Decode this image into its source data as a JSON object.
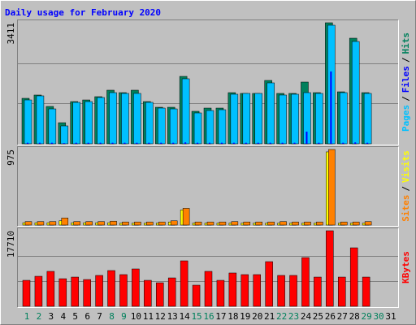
{
  "chart_data": [
    {
      "type": "bar",
      "title": "Daily usage for February 2020",
      "legend_separator": "/",
      "ylim": [
        0,
        3411
      ],
      "yticks": [
        3411
      ],
      "gridlines": [
        1137,
        2274
      ],
      "series": [
        {
          "name": "Pages",
          "color": "#00c0ff",
          "values": [
            1236,
            1351,
            984,
            504,
            1168,
            1190,
            1305,
            1442,
            1420,
            1420,
            1168,
            1007,
            984,
            1832,
            870,
            938,
            961,
            1397,
            1420,
            1420,
            1717,
            1374,
            1397,
            1442,
            1420,
            3342,
            1442,
            2884,
            1420,
            0,
            0
          ]
        },
        {
          "name": "Files",
          "color": "#0000ff",
          "values": [
            30,
            30,
            30,
            20,
            30,
            30,
            30,
            30,
            30,
            30,
            30,
            30,
            30,
            40,
            30,
            30,
            30,
            30,
            30,
            30,
            30,
            30,
            30,
            343,
            30,
            2038,
            30,
            40,
            30,
            0,
            0
          ]
        },
        {
          "name": "Hits",
          "color": "#00805c",
          "values": [
            1282,
            1374,
            1053,
            595,
            1190,
            1236,
            1328,
            1511,
            1442,
            1511,
            1190,
            1030,
            1030,
            1900,
            916,
            1007,
            1007,
            1442,
            1420,
            1420,
            1786,
            1420,
            1420,
            1740,
            1442,
            3411,
            1465,
            2976,
            1442,
            0,
            0
          ]
        }
      ]
    },
    {
      "type": "bar",
      "legend_separator": "/",
      "ylim": [
        0,
        975
      ],
      "yticks": [
        975
      ],
      "series": [
        {
          "name": "Sites",
          "color": "#ff8000",
          "values": [
            45,
            45,
            45,
            92,
            45,
            45,
            45,
            50,
            40,
            40,
            40,
            40,
            55,
            216,
            40,
            40,
            40,
            45,
            40,
            40,
            40,
            45,
            40,
            40,
            40,
            975,
            40,
            40,
            45,
            0,
            0
          ]
        },
        {
          "name": "Visits",
          "color": "#ffff00",
          "values": [
            30,
            30,
            30,
            55,
            30,
            30,
            30,
            30,
            25,
            25,
            25,
            25,
            40,
            195,
            25,
            25,
            25,
            25,
            25,
            25,
            25,
            25,
            25,
            25,
            25,
            944,
            25,
            25,
            25,
            0,
            0
          ]
        }
      ]
    },
    {
      "type": "bar",
      "ylim": [
        0,
        17710
      ],
      "yticks": [
        17710
      ],
      "gridlines": [
        5903,
        11807
      ],
      "categories": [
        "1",
        "2",
        "3",
        "4",
        "5",
        "6",
        "7",
        "8",
        "9",
        "10",
        "11",
        "12",
        "13",
        "14",
        "15",
        "16",
        "17",
        "18",
        "19",
        "20",
        "21",
        "22",
        "23",
        "24",
        "25",
        "26",
        "27",
        "28",
        "29",
        "30",
        "31"
      ],
      "category_colors": [
        "#00805c",
        "#00805c",
        "#000000",
        "#000000",
        "#000000",
        "#000000",
        "#000000",
        "#00805c",
        "#00805c",
        "#000000",
        "#000000",
        "#000000",
        "#000000",
        "#000000",
        "#00805c",
        "#00805c",
        "#000000",
        "#000000",
        "#000000",
        "#000000",
        "#000000",
        "#00805c",
        "#00805c",
        "#000000",
        "#000000",
        "#000000",
        "#000000",
        "#000000",
        "#00805c",
        "#00805c",
        "#000000"
      ],
      "series": [
        {
          "name": "KBytes",
          "color": "#ff0000",
          "values": [
            6090,
            7040,
            8190,
            6470,
            6850,
            6280,
            7240,
            8380,
            7430,
            8760,
            6090,
            5520,
            6660,
            10660,
            4950,
            8190,
            6090,
            7810,
            7430,
            7430,
            10470,
            7240,
            7240,
            11420,
            6850,
            17710,
            6850,
            13710,
            6850,
            0,
            0
          ]
        }
      ]
    }
  ]
}
